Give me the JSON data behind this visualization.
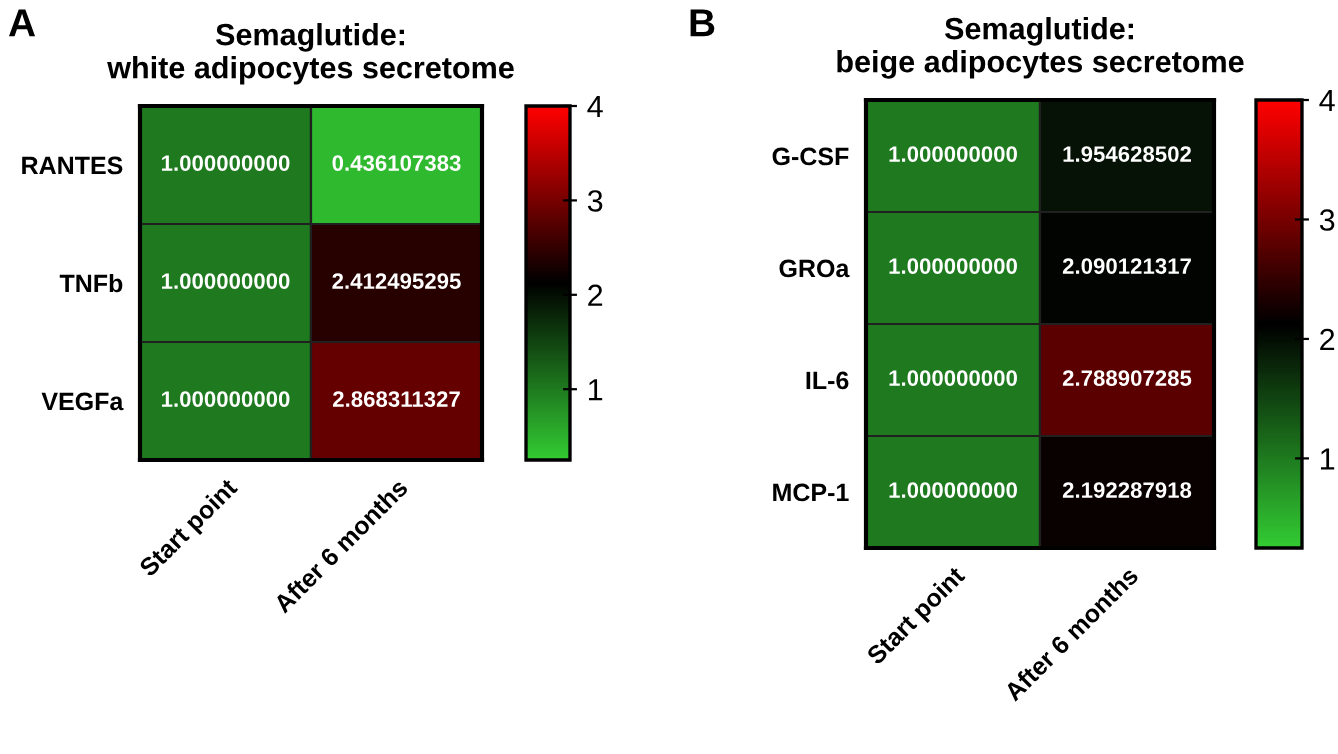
{
  "chart_data": [
    {
      "type": "heatmap",
      "title": "Semaglutide:\nwhite adipocytes secretome",
      "annotations": [
        "A"
      ],
      "categories": [
        "Start point",
        "After 6 months"
      ],
      "y_categories": [
        "RANTES",
        "TNFb",
        "VEGFa"
      ],
      "cells": [
        [
          1.0,
          0.436107383
        ],
        [
          1.0,
          2.412495295
        ],
        [
          1.0,
          2.868311327
        ]
      ],
      "cell_labels": [
        [
          "1.000000000",
          "0.436107383"
        ],
        [
          "1.000000000",
          "2.412495295"
        ],
        [
          "1.000000000",
          "2.868311327"
        ]
      ],
      "clim": [
        0.25,
        4
      ],
      "cticks": [
        1,
        2,
        3,
        4
      ]
    },
    {
      "type": "heatmap",
      "title": "Semaglutide:\nbeige adipocytes secretome",
      "annotations": [
        "B"
      ],
      "categories": [
        "Start point",
        "After 6 months"
      ],
      "y_categories": [
        "G-CSF",
        "GROa",
        "IL-6",
        "MCP-1"
      ],
      "cells": [
        [
          1.0,
          1.954628502
        ],
        [
          1.0,
          2.090121317
        ],
        [
          1.0,
          2.788907285
        ],
        [
          1.0,
          2.192287918
        ]
      ],
      "cell_labels": [
        [
          "1.000000000",
          "1.954628502"
        ],
        [
          "1.000000000",
          "2.090121317"
        ],
        [
          "1.000000000",
          "2.788907285"
        ],
        [
          "1.000000000",
          "2.192287918"
        ]
      ],
      "clim": [
        0.25,
        4
      ],
      "cticks": [
        1,
        2,
        3,
        4
      ]
    }
  ]
}
